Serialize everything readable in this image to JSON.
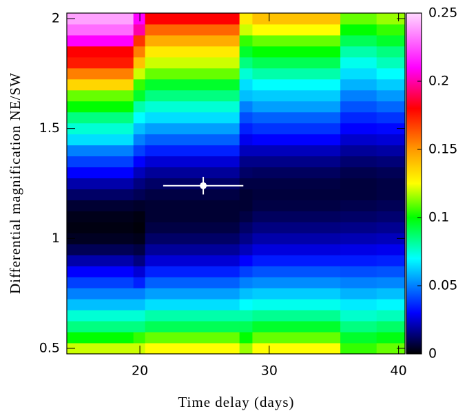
{
  "chart_data": {
    "type": "heatmap",
    "x_label": "Time delay (days)",
    "y_label": "Differential magnification NE/SW",
    "xlim": [
      14.35,
      40.5
    ],
    "ylim": [
      0.475,
      2.025
    ],
    "xticks": [
      20,
      30,
      40
    ],
    "yticks": [
      0.5,
      1,
      1.5,
      2
    ],
    "zlim": [
      0,
      0.25
    ],
    "zticks": [
      0,
      0.05,
      0.1,
      0.15,
      0.2,
      0.25
    ],
    "colorscale": [
      [
        0,
        "#000000"
      ],
      [
        0.03,
        "#0000ff"
      ],
      [
        0.07,
        "#00ffff"
      ],
      [
        0.1,
        "#00ff00"
      ],
      [
        0.125,
        "#ffff00"
      ],
      [
        0.15,
        "#ff9900"
      ],
      [
        0.18,
        "#ff0000"
      ],
      [
        0.21,
        "#ff00ff"
      ],
      [
        0.25,
        "#ffd8ff"
      ]
    ],
    "xbins": [
      14.35,
      19.5,
      20.4,
      27.7,
      28.7,
      35.5,
      38.3,
      40.5
    ],
    "ybins": [
      0.475,
      0.525,
      0.575,
      0.625,
      0.675,
      0.725,
      0.775,
      0.825,
      0.875,
      0.925,
      0.975,
      1.025,
      1.075,
      1.125,
      1.175,
      1.225,
      1.275,
      1.325,
      1.375,
      1.425,
      1.475,
      1.525,
      1.575,
      1.625,
      1.675,
      1.725,
      1.775,
      1.825,
      1.875,
      1.925,
      1.975,
      2.025
    ],
    "z": [
      [
        0.12,
        0.12,
        0.125,
        0.115,
        0.125,
        0.105,
        0.11
      ],
      [
        0.1,
        0.105,
        0.11,
        0.1,
        0.11,
        0.095,
        0.098
      ],
      [
        0.085,
        0.085,
        0.09,
        0.09,
        0.095,
        0.085,
        0.088
      ],
      [
        0.075,
        0.075,
        0.08,
        0.08,
        0.083,
        0.076,
        0.078
      ],
      [
        0.06,
        0.06,
        0.065,
        0.07,
        0.072,
        0.067,
        0.069
      ],
      [
        0.05,
        0.05,
        0.055,
        0.06,
        0.062,
        0.058,
        0.06
      ],
      [
        0.04,
        0.035,
        0.045,
        0.05,
        0.052,
        0.05,
        0.051
      ],
      [
        0.03,
        0.025,
        0.035,
        0.04,
        0.043,
        0.042,
        0.043
      ],
      [
        0.02,
        0.015,
        0.025,
        0.03,
        0.034,
        0.034,
        0.035
      ],
      [
        0.01,
        0.008,
        0.018,
        0.022,
        0.026,
        0.027,
        0.028
      ],
      [
        0.004,
        0.003,
        0.012,
        0.016,
        0.02,
        0.021,
        0.022
      ],
      [
        0.002,
        0.001,
        0.008,
        0.012,
        0.015,
        0.016,
        0.017
      ],
      [
        0.003,
        0.002,
        0.006,
        0.008,
        0.011,
        0.012,
        0.013
      ],
      [
        0.006,
        0.005,
        0.006,
        0.006,
        0.008,
        0.009,
        0.01
      ],
      [
        0.012,
        0.01,
        0.008,
        0.006,
        0.007,
        0.007,
        0.008
      ],
      [
        0.02,
        0.015,
        0.012,
        0.008,
        0.008,
        0.007,
        0.008
      ],
      [
        0.03,
        0.022,
        0.018,
        0.012,
        0.011,
        0.009,
        0.01
      ],
      [
        0.04,
        0.03,
        0.025,
        0.016,
        0.016,
        0.013,
        0.014
      ],
      [
        0.05,
        0.04,
        0.035,
        0.022,
        0.022,
        0.018,
        0.019
      ],
      [
        0.065,
        0.05,
        0.045,
        0.028,
        0.03,
        0.024,
        0.025
      ],
      [
        0.075,
        0.06,
        0.055,
        0.035,
        0.038,
        0.03,
        0.031
      ],
      [
        0.085,
        0.07,
        0.065,
        0.042,
        0.045,
        0.036,
        0.038
      ],
      [
        0.1,
        0.08,
        0.075,
        0.05,
        0.055,
        0.043,
        0.046
      ],
      [
        0.11,
        0.095,
        0.085,
        0.06,
        0.062,
        0.05,
        0.054
      ],
      [
        0.135,
        0.105,
        0.095,
        0.065,
        0.07,
        0.058,
        0.062
      ],
      [
        0.155,
        0.12,
        0.11,
        0.075,
        0.08,
        0.065,
        0.07
      ],
      [
        0.175,
        0.14,
        0.12,
        0.085,
        0.09,
        0.072,
        0.078
      ],
      [
        0.18,
        0.155,
        0.13,
        0.095,
        0.1,
        0.08,
        0.085
      ],
      [
        0.21,
        0.17,
        0.145,
        0.105,
        0.11,
        0.09,
        0.095
      ],
      [
        0.23,
        0.2,
        0.16,
        0.12,
        0.125,
        0.1,
        0.105
      ],
      [
        0.24,
        0.21,
        0.18,
        0.13,
        0.14,
        0.11,
        0.115
      ]
    ],
    "point": {
      "x": 24.9,
      "y": 1.24,
      "xerr": 3.1,
      "yerr": 0.04,
      "color": "#ffffff"
    }
  }
}
